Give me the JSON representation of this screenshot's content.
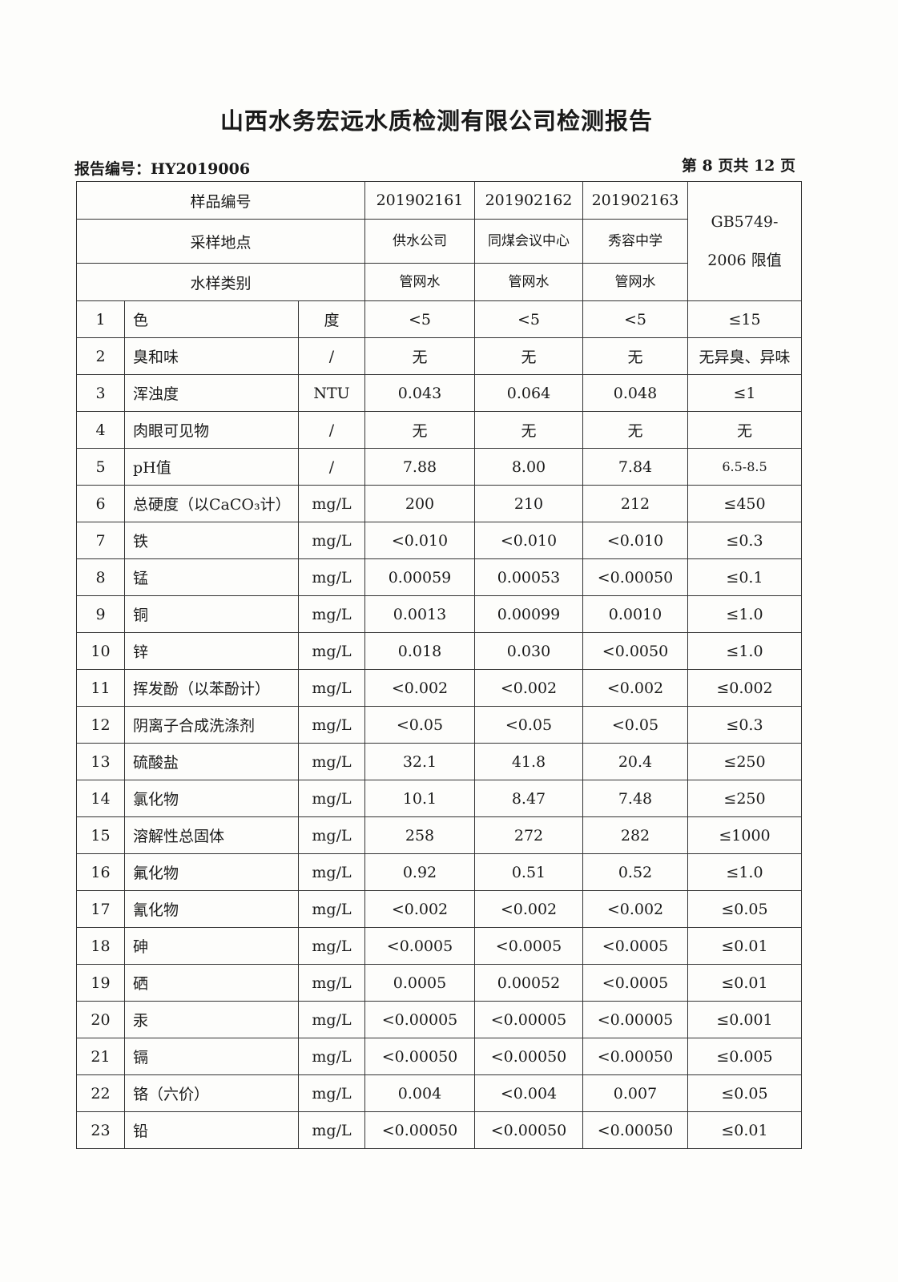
{
  "title": "山西水务宏远水质检测有限公司检测报告",
  "report_no": "报告编号：HY2019006",
  "page_info": "第 8 页共 12 页",
  "header": {
    "sample_no_label": "样品编号",
    "location_label": "采样地点",
    "type_label": "水样类别",
    "limit_label": "GB5749-2006 限值",
    "samples": [
      {
        "no": "201902161",
        "location": "供水公司",
        "type": "管网水"
      },
      {
        "no": "201902162",
        "location": "同煤会议中心",
        "type": "管网水"
      },
      {
        "no": "201902163",
        "location": "秀容中学",
        "type": "管网水"
      }
    ]
  },
  "rows": [
    {
      "n": "1",
      "item": "色",
      "unit": "度",
      "v": [
        "<5",
        "<5",
        "<5"
      ],
      "limit": "≤15"
    },
    {
      "n": "2",
      "item": "臭和味",
      "unit": "/",
      "v": [
        "无",
        "无",
        "无"
      ],
      "limit": "无异臭、异味"
    },
    {
      "n": "3",
      "item": "浑浊度",
      "unit": "NTU",
      "v": [
        "0.043",
        "0.064",
        "0.048"
      ],
      "limit": "≤1"
    },
    {
      "n": "4",
      "item": "肉眼可见物",
      "unit": "/",
      "v": [
        "无",
        "无",
        "无"
      ],
      "limit": "无"
    },
    {
      "n": "5",
      "item": "pH值",
      "unit": "/",
      "v": [
        "7.88",
        "8.00",
        "7.84"
      ],
      "limit": "6.5-8.5"
    },
    {
      "n": "6",
      "item": "总硬度（以CaCO₃计）",
      "unit": "mg/L",
      "v": [
        "200",
        "210",
        "212"
      ],
      "limit": "≤450"
    },
    {
      "n": "7",
      "item": "铁",
      "unit": "mg/L",
      "v": [
        "<0.010",
        "<0.010",
        "<0.010"
      ],
      "limit": "≤0.3"
    },
    {
      "n": "8",
      "item": "锰",
      "unit": "mg/L",
      "v": [
        "0.00059",
        "0.00053",
        "<0.00050"
      ],
      "limit": "≤0.1"
    },
    {
      "n": "9",
      "item": "铜",
      "unit": "mg/L",
      "v": [
        "0.0013",
        "0.00099",
        "0.0010"
      ],
      "limit": "≤1.0"
    },
    {
      "n": "10",
      "item": "锌",
      "unit": "mg/L",
      "v": [
        "0.018",
        "0.030",
        "<0.0050"
      ],
      "limit": "≤1.0"
    },
    {
      "n": "11",
      "item": "挥发酚（以苯酚计）",
      "unit": "mg/L",
      "v": [
        "<0.002",
        "<0.002",
        "<0.002"
      ],
      "limit": "≤0.002"
    },
    {
      "n": "12",
      "item": "阴离子合成洗涤剂",
      "unit": "mg/L",
      "v": [
        "<0.05",
        "<0.05",
        "<0.05"
      ],
      "limit": "≤0.3"
    },
    {
      "n": "13",
      "item": "硫酸盐",
      "unit": "mg/L",
      "v": [
        "32.1",
        "41.8",
        "20.4"
      ],
      "limit": "≤250"
    },
    {
      "n": "14",
      "item": "氯化物",
      "unit": "mg/L",
      "v": [
        "10.1",
        "8.47",
        "7.48"
      ],
      "limit": "≤250"
    },
    {
      "n": "15",
      "item": "溶解性总固体",
      "unit": "mg/L",
      "v": [
        "258",
        "272",
        "282"
      ],
      "limit": "≤1000"
    },
    {
      "n": "16",
      "item": "氟化物",
      "unit": "mg/L",
      "v": [
        "0.92",
        "0.51",
        "0.52"
      ],
      "limit": "≤1.0"
    },
    {
      "n": "17",
      "item": "氰化物",
      "unit": "mg/L",
      "v": [
        "<0.002",
        "<0.002",
        "<0.002"
      ],
      "limit": "≤0.05"
    },
    {
      "n": "18",
      "item": "砷",
      "unit": "mg/L",
      "v": [
        "<0.0005",
        "<0.0005",
        "<0.0005"
      ],
      "limit": "≤0.01"
    },
    {
      "n": "19",
      "item": "硒",
      "unit": "mg/L",
      "v": [
        "0.0005",
        "0.00052",
        "<0.0005"
      ],
      "limit": "≤0.01"
    },
    {
      "n": "20",
      "item": "汞",
      "unit": "mg/L",
      "v": [
        "<0.00005",
        "<0.00005",
        "<0.00005"
      ],
      "limit": "≤0.001"
    },
    {
      "n": "21",
      "item": "镉",
      "unit": "mg/L",
      "v": [
        "<0.00050",
        "<0.00050",
        "<0.00050"
      ],
      "limit": "≤0.005"
    },
    {
      "n": "22",
      "item": "铬（六价）",
      "unit": "mg/L",
      "v": [
        "0.004",
        "<0.004",
        "0.007"
      ],
      "limit": "≤0.05"
    },
    {
      "n": "23",
      "item": "铅",
      "unit": "mg/L",
      "v": [
        "<0.00050",
        "<0.00050",
        "<0.00050"
      ],
      "limit": "≤0.01"
    }
  ]
}
